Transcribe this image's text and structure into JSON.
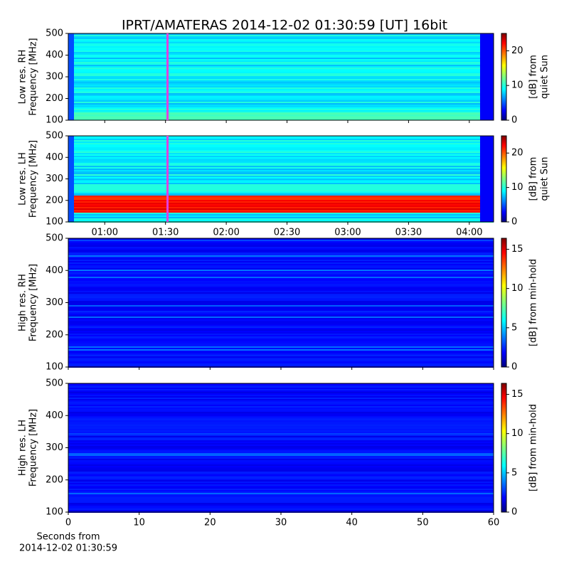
{
  "chart_data": [
    {
      "type": "heatmap",
      "title": "IPRT/AMATERAS 2014-12-02 01:30:59 [UT]   16bit",
      "ylabel": [
        "Low res. RH",
        "Frequency [MHz]"
      ],
      "ylim": [
        100,
        500
      ],
      "yticks": [
        100,
        200,
        300,
        400,
        500
      ],
      "colorbar_label": [
        "[dB] from",
        "quiet Sun"
      ],
      "clim": [
        0,
        25
      ],
      "cticks": [
        0,
        10,
        20
      ],
      "colormap": "jet",
      "xlim": [
        42,
        252
      ],
      "marker": 91,
      "marker_color": "#e040e0"
    },
    {
      "type": "heatmap",
      "ylabel": [
        "Low res. LH",
        "Frequency [MHz]"
      ],
      "ylim": [
        100,
        500
      ],
      "yticks": [
        100,
        200,
        300,
        400,
        500
      ],
      "colorbar_label": [
        "[dB] from",
        "quiet Sun"
      ],
      "clim": [
        0,
        25
      ],
      "cticks": [
        0,
        10,
        20
      ],
      "colormap": "jet",
      "xlim": [
        42,
        252
      ],
      "xticks": [
        {
          "value": 60,
          "label": "01:00"
        },
        {
          "value": 90,
          "label": "01:30"
        },
        {
          "value": 120,
          "label": "02:00"
        },
        {
          "value": 150,
          "label": "02:30"
        },
        {
          "value": 180,
          "label": "03:00"
        },
        {
          "value": 210,
          "label": "03:30"
        },
        {
          "value": 240,
          "label": "04:00"
        }
      ],
      "marker": 91,
      "marker_color": "#e040e0"
    },
    {
      "type": "heatmap",
      "ylabel": [
        "High res. RH",
        "Frequency [MHz]"
      ],
      "ylim": [
        100,
        500
      ],
      "yticks": [
        100,
        200,
        300,
        400,
        500
      ],
      "colorbar_label": [
        "[dB] from min-hold"
      ],
      "clim": [
        0,
        16.4
      ],
      "cticks": [
        0,
        5,
        10,
        15
      ],
      "colormap": "jet",
      "xlim": [
        0,
        60
      ]
    },
    {
      "type": "heatmap",
      "ylabel": [
        "High res. LH",
        "Frequency [MHz]"
      ],
      "ylim": [
        100,
        500
      ],
      "yticks": [
        100,
        200,
        300,
        400,
        500
      ],
      "colorbar_label": [
        "[dB] from min-hold"
      ],
      "clim": [
        0,
        16.4
      ],
      "cticks": [
        0,
        5,
        10,
        15
      ],
      "colormap": "jet",
      "xlim": [
        0,
        60
      ],
      "xticks": [
        0,
        10,
        20,
        30,
        40,
        50,
        60
      ],
      "xlabel": [
        "Seconds from",
        "2014-12-02 01:30:59"
      ]
    }
  ]
}
